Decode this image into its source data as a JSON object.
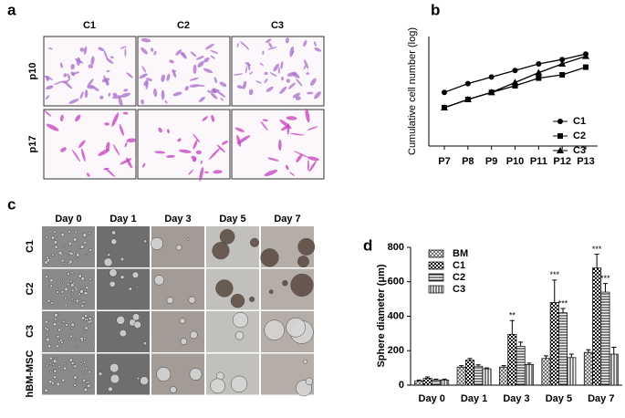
{
  "panels": {
    "a": "a",
    "b": "b",
    "c": "c",
    "d": "d"
  },
  "panel_a": {
    "columns": [
      "C1",
      "C2",
      "C3"
    ],
    "rows": [
      "p10",
      "p17"
    ]
  },
  "panel_c": {
    "columns": [
      "Day 0",
      "Day 1",
      "Day 3",
      "Day 5",
      "Day 7"
    ],
    "rows": [
      "C1",
      "C2",
      "C3",
      "hBM-MSC"
    ]
  },
  "chart_data": [
    {
      "type": "line",
      "y_label": "Cumulative cell number (log)",
      "categories": [
        "P7",
        "P8",
        "P9",
        "P10",
        "P11",
        "P12",
        "P13"
      ],
      "ylim": [
        0,
        10
      ],
      "legend": "lower-right",
      "series": [
        {
          "name": "C1",
          "color": "#000000",
          "marker": "circle",
          "values": [
            4.9,
            5.7,
            6.3,
            6.9,
            7.5,
            7.9,
            8.4
          ]
        },
        {
          "name": "C2",
          "color": "#000000",
          "marker": "square",
          "values": [
            3.5,
            4.25,
            4.9,
            5.5,
            6.2,
            6.5,
            7.2
          ]
        },
        {
          "name": "C3",
          "color": "#000000",
          "marker": "triangle",
          "values": [
            3.5,
            4.25,
            4.9,
            5.8,
            6.7,
            7.5,
            8.2
          ]
        }
      ]
    },
    {
      "type": "bar",
      "y_label": "Sphere diameter (μm)",
      "categories": [
        "Day 0",
        "Day 1",
        "Day 3",
        "Day 5",
        "Day 7"
      ],
      "ylim": [
        0,
        800
      ],
      "yticks": [
        0,
        200,
        400,
        600,
        800
      ],
      "legend": "upper-left",
      "series": [
        {
          "name": "BM",
          "color": "#000000",
          "pattern": "crosshatch",
          "values": [
            25,
            105,
            105,
            155,
            190
          ],
          "error": [
            5,
            8,
            8,
            15,
            15
          ],
          "significance": [
            null,
            null,
            null,
            null,
            null
          ]
        },
        {
          "name": "C1",
          "color": "#000000",
          "pattern": "checker",
          "values": [
            40,
            145,
            295,
            480,
            680
          ],
          "error": [
            8,
            10,
            80,
            130,
            80
          ],
          "significance": [
            null,
            null,
            "**",
            "***",
            "***"
          ]
        },
        {
          "name": "C2",
          "color": "#000000",
          "pattern": "hlines",
          "values": [
            30,
            110,
            225,
            420,
            540
          ],
          "error": [
            5,
            8,
            25,
            25,
            50
          ],
          "significance": [
            null,
            null,
            null,
            "***",
            "***"
          ]
        },
        {
          "name": "C3",
          "color": "#000000",
          "pattern": "vlines",
          "values": [
            30,
            95,
            120,
            160,
            180
          ],
          "error": [
            5,
            5,
            8,
            20,
            40
          ],
          "significance": [
            null,
            null,
            null,
            null,
            null
          ]
        }
      ]
    }
  ]
}
